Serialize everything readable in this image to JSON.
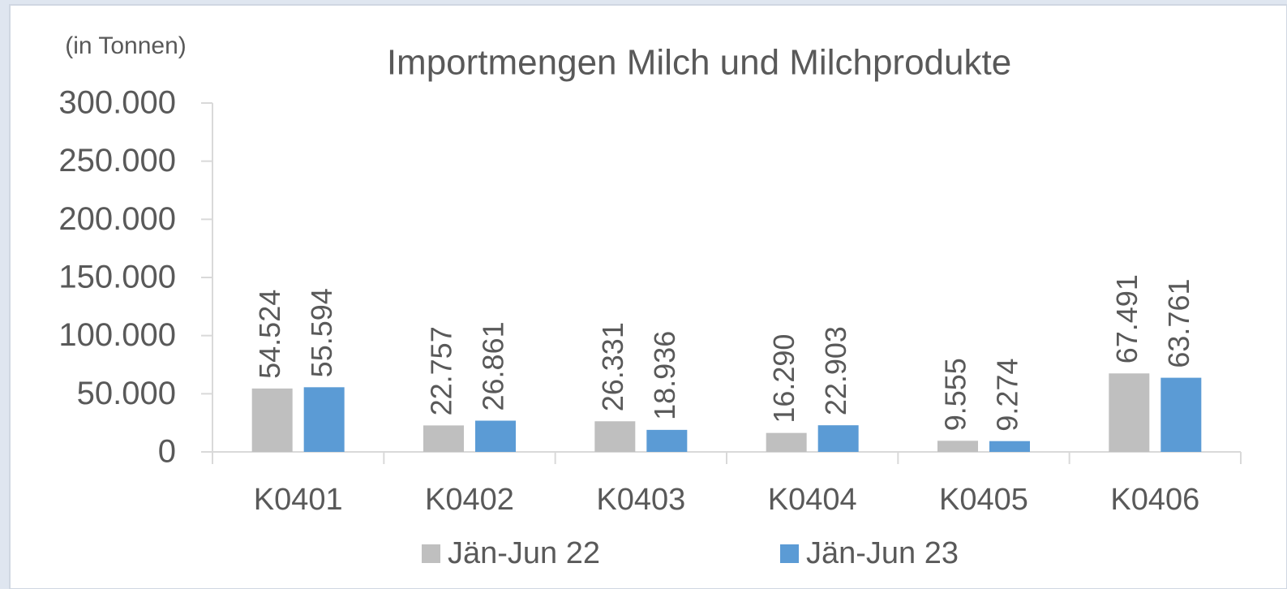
{
  "chart_data": {
    "type": "bar",
    "title": "Importmengen Milch und Milchprodukte",
    "y_unit_label": "(in Tonnen)",
    "categories": [
      "K0401",
      "K0402",
      "K0403",
      "K0404",
      "K0405",
      "K0406"
    ],
    "series": [
      {
        "name": "Jän-Jun 22",
        "color": "#bfbfbf",
        "values": [
          54524,
          22757,
          26331,
          16290,
          9555,
          67491
        ],
        "value_labels": [
          "54.524",
          "22.757",
          "26.331",
          "16.290",
          "9.555",
          "67.491"
        ]
      },
      {
        "name": "Jän-Jun 23",
        "color": "#5b9bd5",
        "values": [
          55594,
          26861,
          18936,
          22903,
          9274,
          63761
        ],
        "value_labels": [
          "55.594",
          "26.861",
          "18.936",
          "22.903",
          "9.274",
          "63.761"
        ]
      }
    ],
    "ylim": [
      0,
      300000
    ],
    "yticks": [
      0,
      {
        "value": 50000,
        "label": "50.000"
      },
      {
        "value": 100000,
        "label": "100.000"
      },
      {
        "value": 150000,
        "label": "150.000"
      },
      {
        "value": 200000,
        "label": "200.000"
      },
      {
        "value": 250000,
        "label": "250.000"
      },
      {
        "value": 300000,
        "label": "300.000"
      }
    ],
    "grid": false
  }
}
